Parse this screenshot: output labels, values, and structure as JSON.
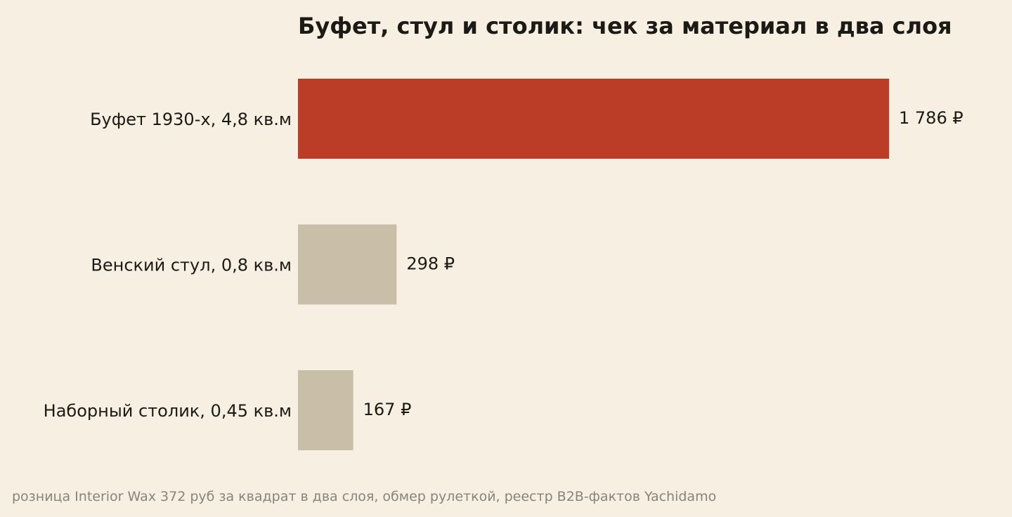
{
  "chart_data": {
    "type": "bar",
    "orientation": "horizontal",
    "title": "Буфет, стул и столик: чек за материал в два слоя",
    "categories": [
      "Буфет 1930-х, 4,8 кв.м",
      "Венский стул, 0,8 кв.м",
      "Наборный столик, 0,45 кв.м"
    ],
    "values": [
      1786,
      298,
      167
    ],
    "value_labels": [
      "1 786 ₽",
      "298 ₽",
      "167 ₽"
    ],
    "bar_colors": [
      "#bb3d27",
      "#c9bfa8",
      "#c9bfa8"
    ],
    "xlim": [
      0,
      1786
    ],
    "grid": false,
    "legend": "none",
    "xlabel": "",
    "ylabel": ""
  },
  "source": "розница Interior Wax 372 руб за квадрат в два слоя, обмер рулеткой, реестр B2B-фактов Yachidamo",
  "colors": {
    "background": "#f6efe2",
    "text": "#1c1a14",
    "muted": "#8a8478"
  }
}
